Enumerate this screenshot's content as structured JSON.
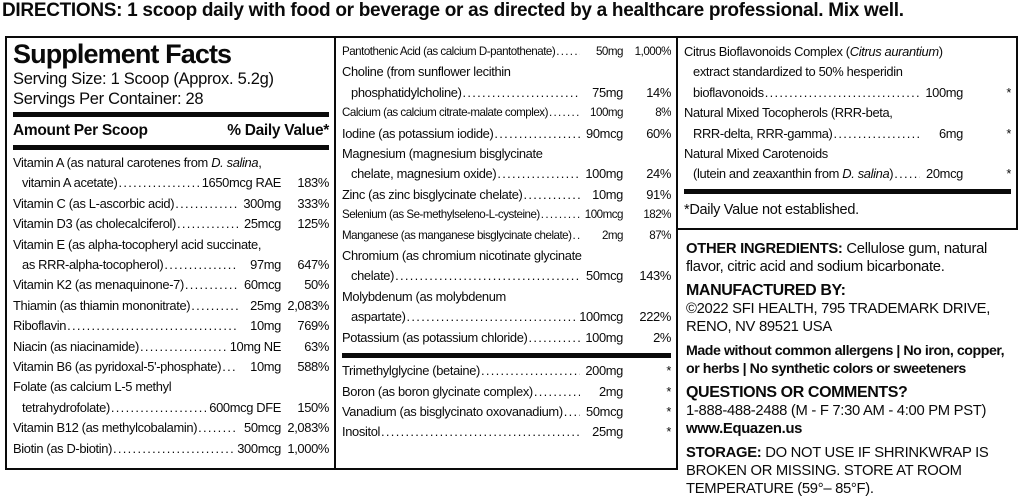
{
  "directions": "DIRECTIONS: 1 scoop daily with food or beverage or as directed by a healthcare professional. Mix well.",
  "panel": {
    "title": "Supplement Facts",
    "serving_size": "Serving Size: 1 Scoop (Approx. 5.2g)",
    "servings_per_container": "Servings Per Container: 28",
    "col_header_amount": "Amount Per Scoop",
    "col_header_dv": "% Daily Value*",
    "dv_footnote": "*Daily Value not established.",
    "left_rows": [
      {
        "pre": [
          [
            "Vitamin A (as natural carotenes from ",
            {
              "i": "D. salina"
            },
            ","
          ]
        ],
        "label": [
          "vitamin A acetate)"
        ],
        "indent": true,
        "amount": "1650mcg RAE",
        "dv": "183%"
      },
      {
        "label": [
          "Vitamin C (as L-ascorbic acid)"
        ],
        "amount": "300mg",
        "dv": "333%"
      },
      {
        "label": [
          "Vitamin D3 (as cholecalciferol)"
        ],
        "amount": "25mcg",
        "dv": "125%"
      },
      {
        "pre": [
          [
            "Vitamin E (as alpha-tocopheryl acid succinate,"
          ]
        ],
        "label": [
          "as RRR-alpha-tocopherol)"
        ],
        "indent": true,
        "amount": "97mg",
        "dv": "647%"
      },
      {
        "label": [
          "Vitamin K2 (as menaquinone-7)"
        ],
        "amount": "60mcg",
        "dv": "50%"
      },
      {
        "label": [
          "Thiamin (as thiamin mononitrate)"
        ],
        "amount": "25mg",
        "dv": "2,083%"
      },
      {
        "label": [
          "Riboflavin"
        ],
        "amount": "10mg",
        "dv": "769%"
      },
      {
        "label": [
          "Niacin (as niacinamide)"
        ],
        "amount": "10mg NE",
        "dv": "63%"
      },
      {
        "label": [
          "Vitamin B6 (as pyridoxal-5'-phosphate)"
        ],
        "amount": "10mg",
        "dv": "588%"
      },
      {
        "pre": [
          [
            "Folate (as calcium L-5 methyl"
          ]
        ],
        "label": [
          "tetrahydrofolate)"
        ],
        "indent": true,
        "amount": "600mcg DFE",
        "dv": "150%"
      },
      {
        "label": [
          "Vitamin B12 (as methylcobalamin)"
        ],
        "amount": "50mcg",
        "dv": "2,083%"
      },
      {
        "label": [
          "Biotin (as D-biotin)"
        ],
        "amount": "300mcg",
        "dv": "1,000%"
      }
    ],
    "middle_rows": [
      {
        "label": [
          "Pantothenic Acid (as calcium D-pantothenate)"
        ],
        "amount": "50mg",
        "dv": "1,000%",
        "sm": true
      },
      {
        "pre": [
          [
            "Choline (from sunflower lecithin"
          ]
        ],
        "label": [
          "phosphatidylcholine)"
        ],
        "indent": true,
        "amount": "75mg",
        "dv": "14%"
      },
      {
        "label": [
          "Calcium (as calcium citrate-malate complex)"
        ],
        "amount": "100mg",
        "dv": "8%",
        "sm": true
      },
      {
        "label": [
          "Iodine (as potassium iodide)"
        ],
        "amount": "90mcg",
        "dv": "60%"
      },
      {
        "pre": [
          [
            "Magnesium (magnesium bisglycinate"
          ]
        ],
        "label": [
          "chelate, magnesium oxide)"
        ],
        "indent": true,
        "amount": "100mg",
        "dv": "24%"
      },
      {
        "label": [
          "Zinc (as zinc bisglycinate chelate)"
        ],
        "amount": "10mg",
        "dv": "91%"
      },
      {
        "label": [
          "Selenium (as Se-methylseleno-L-cysteine)"
        ],
        "amount": "100mcg",
        "dv": "182%",
        "sm": true
      },
      {
        "label": [
          "Manganese (as manganese bisglycinate chelate)"
        ],
        "amount": "2mg",
        "dv": "87%",
        "sm": true
      },
      {
        "pre": [
          [
            "Chromium (as chromium nicotinate glycinate"
          ]
        ],
        "label": [
          "chelate)"
        ],
        "indent": true,
        "amount": "50mcg",
        "dv": "143%"
      },
      {
        "pre": [
          [
            "Molybdenum (as molybdenum"
          ]
        ],
        "label": [
          "aspartate)"
        ],
        "indent": true,
        "amount": "100mcg",
        "dv": "222%"
      },
      {
        "label": [
          "Potassium (as potassium chloride)"
        ],
        "amount": "100mg",
        "dv": "2%"
      }
    ],
    "middle_rows2": [
      {
        "label": [
          "Trimethylglycine (betaine)"
        ],
        "amount": "200mg",
        "dv": "*"
      },
      {
        "label": [
          "Boron (as boron glycinate complex)"
        ],
        "amount": "2mg",
        "dv": "*"
      },
      {
        "label": [
          "Vanadium (as bisglycinato oxovanadium)"
        ],
        "amount": "50mcg",
        "dv": "*"
      },
      {
        "label": [
          "Inositol"
        ],
        "amount": "25mg",
        "dv": "*"
      }
    ],
    "right_rows": [
      {
        "pre": [
          [
            "Citrus Bioflavonoids Complex (",
            {
              "i": "Citrus aurantium"
            },
            ")"
          ],
          [
            "extract standardized to 50% hesperidin"
          ]
        ],
        "label": [
          "bioflavonoids"
        ],
        "indent": true,
        "amount": "100mg",
        "dv": "*"
      },
      {
        "pre": [
          [
            "Natural Mixed Tocopherols (RRR-beta,"
          ]
        ],
        "label": [
          "RRR-delta, RRR-gamma)"
        ],
        "indent": true,
        "amount": "6mg",
        "dv": "*"
      },
      {
        "pre": [
          [
            "Natural Mixed Carotenoids"
          ]
        ],
        "label": [
          "(lutein and zeaxanthin from ",
          {
            "i": "D. salina"
          },
          ")"
        ],
        "indent": true,
        "amount": "20mcg",
        "dv": "*"
      }
    ]
  },
  "info": {
    "other_ingredients_label": "OTHER INGREDIENTS:",
    "other_ingredients_text": " Cellulose gum, natural flavor, citric acid and sodium bicarbonate.",
    "manufactured_by_label": "MANUFACTURED BY:",
    "manufactured_by_text": "©2022 SFI HEALTH, 795 TRADEMARK DRIVE, RENO, NV 89521 USA",
    "allergens": "Made without common allergens | No iron, copper, or herbs | No synthetic colors or sweeteners",
    "questions_label": "QUESTIONS OR COMMENTS?",
    "questions_phone": "1-888-488-2488 (M - F 7:30 AM - 4:00 PM PST)",
    "questions_web": "www.Equazen.us",
    "storage_label": "STORAGE:",
    "storage_text": " DO NOT USE IF SHRINKWRAP IS BROKEN OR MISSING. STORE AT ROOM TEMPERATURE (59°– 85°F)."
  },
  "colors": {
    "ink": "#0a0a0a",
    "background": "#ffffff"
  }
}
